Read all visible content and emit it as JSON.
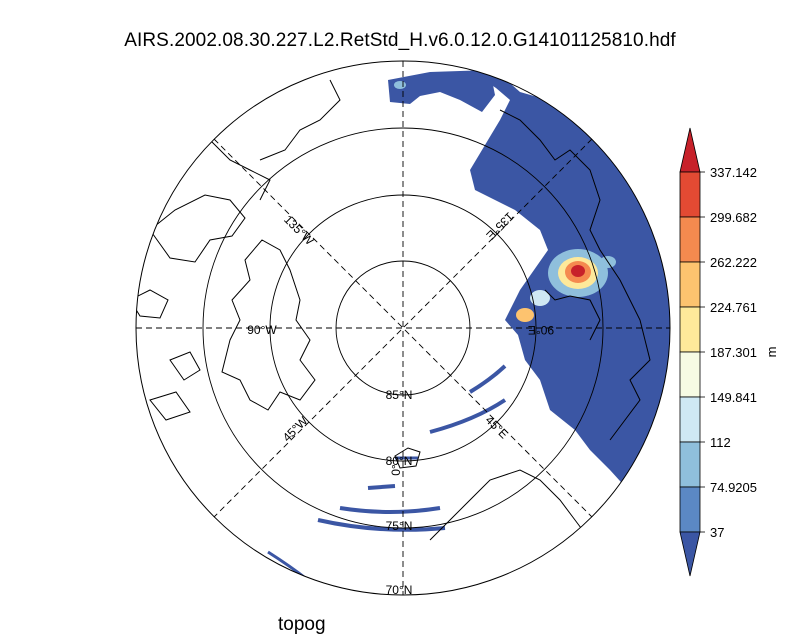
{
  "title": "AIRS.2002.08.30.227.L2.RetStd_H.v6.0.12.0.G14101125810.hdf",
  "caption": "topog",
  "map": {
    "projection": "north-polar-stereographic",
    "latitude_labels": [
      "85°N",
      "80°N",
      "75°N",
      "70°N"
    ],
    "longitude_labels": [
      "135°W",
      "90°W",
      "45°W",
      "0°",
      "45°E",
      "90°E",
      "135°E"
    ]
  },
  "colorbar": {
    "unit": "m",
    "levels": [
      "337.142",
      "299.682",
      "262.222",
      "224.761",
      "187.301",
      "149.841",
      "112",
      "74.9205",
      "37"
    ],
    "colors": [
      "#c7212a",
      "#e34a33",
      "#f58a4f",
      "#fdc36f",
      "#fee99a",
      "#f7fbe3",
      "#cfe8f3",
      "#8fbfdc",
      "#5b88c4",
      "#3b56a4"
    ]
  },
  "colors": {
    "data_fill": "#3b56a4",
    "coast": "#000000",
    "grid": "#000000"
  }
}
